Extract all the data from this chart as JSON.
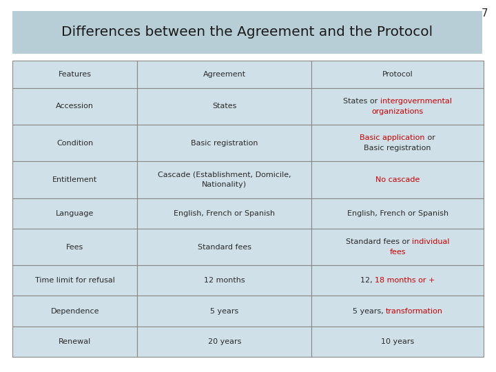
{
  "title": "Differences between the Agreement and the Protocol",
  "slide_number": "7",
  "title_bg": "#b8ced6",
  "table_bg": "#cfe0e8",
  "border_color": "#888888",
  "text_color_normal": "#2a2a2a",
  "text_color_red": "#cc0000",
  "rows": [
    {
      "col1_parts": [
        {
          "text": "Features",
          "color": "#2a2a2a"
        }
      ],
      "col2_parts": [
        {
          "text": "Agreement",
          "color": "#2a2a2a"
        }
      ],
      "col3_parts": [
        {
          "text": "Protocol",
          "color": "#2a2a2a"
        }
      ]
    },
    {
      "col1_parts": [
        {
          "text": "Accession",
          "color": "#2a2a2a"
        }
      ],
      "col2_parts": [
        {
          "text": "States",
          "color": "#2a2a2a"
        }
      ],
      "col3_parts": [
        {
          "text": "States or ",
          "color": "#2a2a2a"
        },
        {
          "text": "intergovernmental\norganizations",
          "color": "#cc0000"
        }
      ]
    },
    {
      "col1_parts": [
        {
          "text": "Condition",
          "color": "#2a2a2a"
        }
      ],
      "col2_parts": [
        {
          "text": "Basic registration",
          "color": "#2a2a2a"
        }
      ],
      "col3_parts": [
        {
          "text": "Basic application",
          "color": "#cc0000"
        },
        {
          "text": " or\nBasic registration",
          "color": "#2a2a2a"
        }
      ]
    },
    {
      "col1_parts": [
        {
          "text": "Entitlement",
          "color": "#2a2a2a"
        }
      ],
      "col2_parts": [
        {
          "text": "Cascade (Establishment, Domicile,\nNationality)",
          "color": "#2a2a2a"
        }
      ],
      "col3_parts": [
        {
          "text": "No cascade",
          "color": "#cc0000"
        }
      ]
    },
    {
      "col1_parts": [
        {
          "text": "Language",
          "color": "#2a2a2a"
        }
      ],
      "col2_parts": [
        {
          "text": "English, French or Spanish",
          "color": "#2a2a2a"
        }
      ],
      "col3_parts": [
        {
          "text": "English, French or Spanish",
          "color": "#2a2a2a"
        }
      ]
    },
    {
      "col1_parts": [
        {
          "text": "Fees",
          "color": "#2a2a2a"
        }
      ],
      "col2_parts": [
        {
          "text": "Standard fees",
          "color": "#2a2a2a"
        }
      ],
      "col3_parts": [
        {
          "text": "Standard fees or ",
          "color": "#2a2a2a"
        },
        {
          "text": "individual\nfees",
          "color": "#cc0000"
        }
      ]
    },
    {
      "col1_parts": [
        {
          "text": "Time limit for refusal",
          "color": "#2a2a2a"
        }
      ],
      "col2_parts": [
        {
          "text": "12 months",
          "color": "#2a2a2a"
        }
      ],
      "col3_parts": [
        {
          "text": "12, ",
          "color": "#2a2a2a"
        },
        {
          "text": "18 months or +",
          "color": "#cc0000"
        }
      ]
    },
    {
      "col1_parts": [
        {
          "text": "Dependence",
          "color": "#2a2a2a"
        }
      ],
      "col2_parts": [
        {
          "text": "5 years",
          "color": "#2a2a2a"
        }
      ],
      "col3_parts": [
        {
          "text": "5 years, ",
          "color": "#2a2a2a"
        },
        {
          "text": "transformation",
          "color": "#cc0000"
        }
      ]
    },
    {
      "col1_parts": [
        {
          "text": "Renewal",
          "color": "#2a2a2a"
        }
      ],
      "col2_parts": [
        {
          "text": "20 years",
          "color": "#2a2a2a"
        }
      ],
      "col3_parts": [
        {
          "text": "10 years",
          "color": "#2a2a2a"
        }
      ]
    }
  ],
  "font_size": 8.0,
  "font_family": "sans-serif"
}
